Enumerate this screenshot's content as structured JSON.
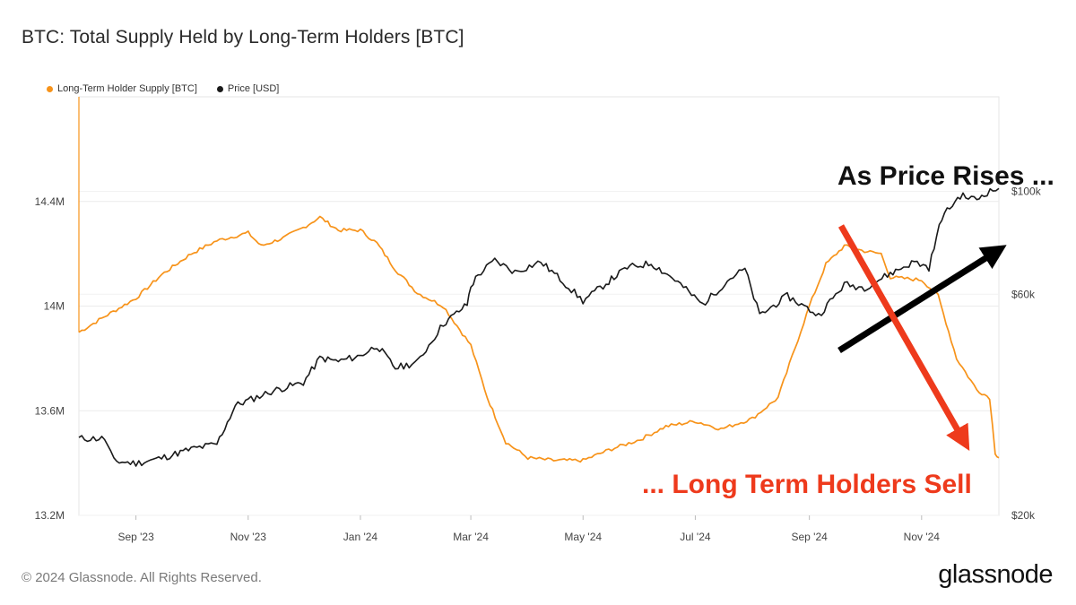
{
  "title": "BTC: Total Supply Held by Long-Term Holders [BTC]",
  "footer": {
    "copyright": "© 2024 Glassnode. All Rights Reserved.",
    "brand": "glassnode"
  },
  "annotations": {
    "rises": "As Price Rises ...",
    "sell": "... Long Term Holders Sell"
  },
  "colors": {
    "lth": "#f7931a",
    "price": "#1a1a1a",
    "arrow_up": "#000000",
    "arrow_down": "#ee3a1c"
  },
  "chart_data": {
    "type": "line",
    "x_range": [
      "2023-08-01",
      "2024-12-13"
    ],
    "x_ticks": [
      {
        "date": "2023-09-01",
        "label": "Sep '23"
      },
      {
        "date": "2023-11-01",
        "label": "Nov '23"
      },
      {
        "date": "2024-01-01",
        "label": "Jan '24"
      },
      {
        "date": "2024-03-01",
        "label": "Mar '24"
      },
      {
        "date": "2024-05-01",
        "label": "May '24"
      },
      {
        "date": "2024-07-01",
        "label": "Jul '24"
      },
      {
        "date": "2024-09-01",
        "label": "Sep '24"
      },
      {
        "date": "2024-11-01",
        "label": "Nov '24"
      }
    ],
    "y_left": {
      "range": [
        13200000,
        14800000
      ],
      "ticks": [
        {
          "value": 13200000,
          "label": "13.2M"
        },
        {
          "value": 13600000,
          "label": "13.6M"
        },
        {
          "value": 14000000,
          "label": "14M"
        },
        {
          "value": 14400000,
          "label": "14.4M"
        }
      ]
    },
    "y_right": {
      "scale": "log",
      "range": [
        20000,
        160000
      ],
      "ticks": [
        {
          "value": 20000,
          "label": "$20k"
        },
        {
          "value": 60000,
          "label": "$60k"
        },
        {
          "value": 100000,
          "label": "$100k"
        }
      ]
    },
    "grid": true,
    "legend_position": "top-left",
    "series": [
      {
        "name": "Long-Term Holder Supply [BTC]",
        "axis": "left",
        "points": [
          [
            "2023-08-01",
            13900000
          ],
          [
            "2023-08-15",
            13960000
          ],
          [
            "2023-09-01",
            14030000
          ],
          [
            "2023-09-15",
            14120000
          ],
          [
            "2023-10-01",
            14200000
          ],
          [
            "2023-10-15",
            14250000
          ],
          [
            "2023-11-01",
            14280000
          ],
          [
            "2023-11-08",
            14230000
          ],
          [
            "2023-11-20",
            14260000
          ],
          [
            "2023-12-01",
            14300000
          ],
          [
            "2023-12-10",
            14340000
          ],
          [
            "2023-12-20",
            14290000
          ],
          [
            "2024-01-01",
            14290000
          ],
          [
            "2024-01-10",
            14240000
          ],
          [
            "2024-01-20",
            14140000
          ],
          [
            "2024-02-01",
            14050000
          ],
          [
            "2024-02-15",
            14000000
          ],
          [
            "2024-03-01",
            13850000
          ],
          [
            "2024-03-10",
            13650000
          ],
          [
            "2024-03-20",
            13480000
          ],
          [
            "2024-04-01",
            13420000
          ],
          [
            "2024-04-15",
            13410000
          ],
          [
            "2024-05-01",
            13410000
          ],
          [
            "2024-05-15",
            13450000
          ],
          [
            "2024-06-01",
            13490000
          ],
          [
            "2024-06-15",
            13540000
          ],
          [
            "2024-07-01",
            13560000
          ],
          [
            "2024-07-15",
            13530000
          ],
          [
            "2024-08-01",
            13570000
          ],
          [
            "2024-08-15",
            13650000
          ],
          [
            "2024-09-01",
            14000000
          ],
          [
            "2024-09-10",
            14160000
          ],
          [
            "2024-09-20",
            14230000
          ],
          [
            "2024-10-01",
            14210000
          ],
          [
            "2024-10-10",
            14200000
          ],
          [
            "2024-10-15",
            14110000
          ],
          [
            "2024-11-01",
            14100000
          ],
          [
            "2024-11-10",
            14040000
          ],
          [
            "2024-11-20",
            13800000
          ],
          [
            "2024-12-01",
            13680000
          ],
          [
            "2024-12-08",
            13650000
          ],
          [
            "2024-12-11",
            13440000
          ],
          [
            "2024-12-13",
            13420000
          ]
        ]
      },
      {
        "name": "Price [USD]",
        "axis": "right",
        "scale": "log",
        "points": [
          [
            "2023-08-01",
            29300
          ],
          [
            "2023-08-15",
            29300
          ],
          [
            "2023-08-20",
            26200
          ],
          [
            "2023-09-01",
            25900
          ],
          [
            "2023-09-15",
            26600
          ],
          [
            "2023-10-01",
            27800
          ],
          [
            "2023-10-15",
            28500
          ],
          [
            "2023-10-25",
            34500
          ],
          [
            "2023-11-01",
            35400
          ],
          [
            "2023-11-15",
            37200
          ],
          [
            "2023-12-01",
            38700
          ],
          [
            "2023-12-10",
            43700
          ],
          [
            "2023-12-20",
            43000
          ],
          [
            "2024-01-01",
            44200
          ],
          [
            "2024-01-10",
            46500
          ],
          [
            "2024-01-20",
            41600
          ],
          [
            "2024-02-01",
            42800
          ],
          [
            "2024-02-15",
            51800
          ],
          [
            "2024-02-28",
            57000
          ],
          [
            "2024-03-01",
            62500
          ],
          [
            "2024-03-05",
            66000
          ],
          [
            "2024-03-14",
            71000
          ],
          [
            "2024-03-25",
            67000
          ],
          [
            "2024-04-08",
            70500
          ],
          [
            "2024-04-20",
            64000
          ],
          [
            "2024-05-01",
            58000
          ],
          [
            "2024-05-15",
            64000
          ],
          [
            "2024-05-25",
            68500
          ],
          [
            "2024-06-07",
            70000
          ],
          [
            "2024-06-20",
            64500
          ],
          [
            "2024-07-05",
            57000
          ],
          [
            "2024-07-20",
            65000
          ],
          [
            "2024-07-28",
            68000
          ],
          [
            "2024-08-05",
            54000
          ],
          [
            "2024-08-20",
            59500
          ],
          [
            "2024-09-06",
            54000
          ],
          [
            "2024-09-20",
            63000
          ],
          [
            "2024-10-01",
            62000
          ],
          [
            "2024-10-15",
            66500
          ],
          [
            "2024-10-28",
            70500
          ],
          [
            "2024-11-05",
            68500
          ],
          [
            "2024-11-12",
            88000
          ],
          [
            "2024-11-22",
            98000
          ],
          [
            "2024-12-01",
            96000
          ],
          [
            "2024-12-05",
            99000
          ],
          [
            "2024-12-13",
            101500
          ]
        ]
      }
    ]
  }
}
